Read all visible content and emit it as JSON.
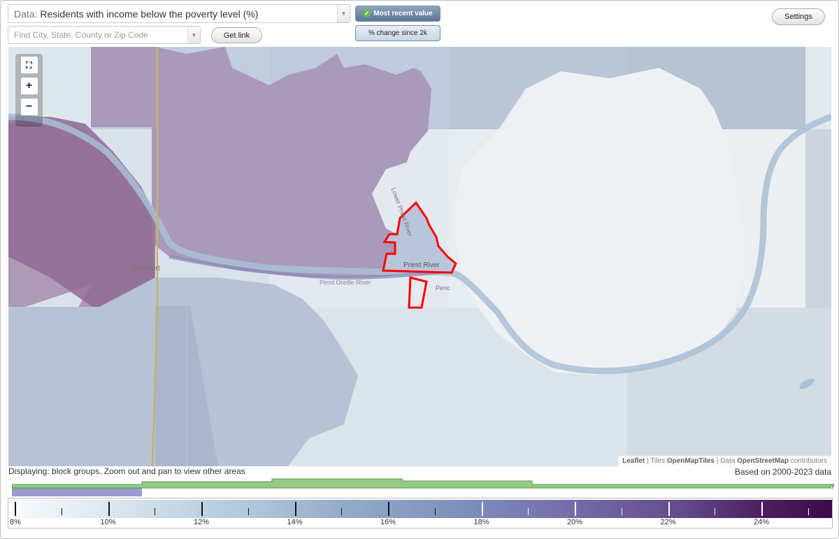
{
  "data_select": {
    "prefix": "Data:",
    "value": "Residents with income below the poverty level (%)"
  },
  "search": {
    "placeholder": "Find City, State, County or Zip Code"
  },
  "get_link": "Get link",
  "toggles": {
    "most_recent": "Most recent value",
    "change": "% change since 2k"
  },
  "settings": "Settings",
  "map": {
    "labels": {
      "newport": "Newport",
      "priest_river": "Priest River",
      "lower_priest_river": "Lower Priest River",
      "pend_oreille_river": "Pend Oreille River",
      "pend": "Penc"
    },
    "attribution": {
      "leaflet": "Leaflet",
      "sep1": " | Tiles ",
      "tiles": "OpenMapTiles",
      "sep2": " | Data ",
      "data": "OpenStreetMap",
      "contrib": " contributors"
    },
    "highlight_color": "#ff0000"
  },
  "status": {
    "displaying": "Displaying: block groups. Zoom out and pan to view other areas",
    "based_on": "Based on 2000-2023 data"
  },
  "histogram_unknown": "?",
  "legend": {
    "labels": [
      "8%",
      "10%",
      "12%",
      "14%",
      "16%",
      "18%",
      "20%",
      "22%",
      "24%"
    ],
    "color_low": "#f7fbfd",
    "color_high": "#3d0a4c"
  }
}
